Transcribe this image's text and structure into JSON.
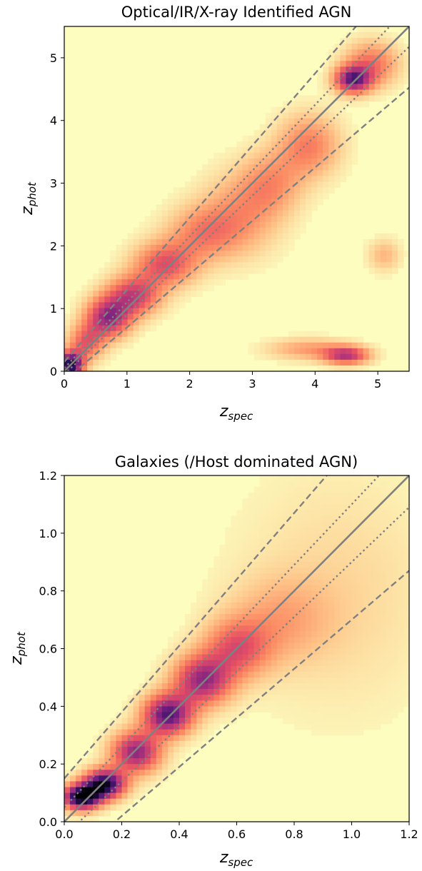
{
  "chart_data": [
    {
      "type": "heatmap",
      "title": "Optical/IR/X-ray Identified AGN",
      "xlabel": {
        "main": "z",
        "sub": "spec"
      },
      "ylabel": {
        "main": "z",
        "sub": "phot"
      },
      "xlim": [
        0,
        5.5
      ],
      "ylim": [
        0,
        5.5
      ],
      "xticks": [
        "0",
        "1",
        "2",
        "3",
        "4",
        "5"
      ],
      "yticks": [
        "0",
        "1",
        "2",
        "3",
        "4",
        "5"
      ],
      "colormap": [
        "#fcfdbf",
        "#fec287",
        "#fb8861",
        "#e75263",
        "#b73779",
        "#721f81",
        "#2c115f",
        "#000004"
      ],
      "reference_lines": [
        {
          "style": "solid",
          "color": "#808080",
          "slope": 1.0,
          "offset": 0.0
        },
        {
          "style": "dotted",
          "color": "#808080",
          "slope": 1.05,
          "offset": 0.05
        },
        {
          "style": "dotted",
          "color": "#808080",
          "slope": 0.95,
          "offset": -0.05
        },
        {
          "style": "dashed",
          "color": "#808080",
          "slope": 1.15,
          "offset": 0.15
        },
        {
          "style": "dashed",
          "color": "#808080",
          "slope": 0.85,
          "offset": -0.15
        }
      ],
      "density": [
        {
          "x": 0.1,
          "y": 0.1,
          "sx": 0.14,
          "sy": 0.14,
          "w": 1.2
        },
        {
          "x": 0.35,
          "y": 0.45,
          "sx": 0.2,
          "sy": 0.2,
          "w": 0.5
        },
        {
          "x": 0.7,
          "y": 0.85,
          "sx": 0.25,
          "sy": 0.22,
          "w": 0.8
        },
        {
          "x": 1.1,
          "y": 1.2,
          "sx": 0.3,
          "sy": 0.22,
          "w": 0.65
        },
        {
          "x": 1.6,
          "y": 1.7,
          "sx": 0.35,
          "sy": 0.25,
          "w": 0.55
        },
        {
          "x": 2.2,
          "y": 2.2,
          "sx": 0.4,
          "sy": 0.3,
          "w": 0.35
        },
        {
          "x": 2.8,
          "y": 2.5,
          "sx": 0.45,
          "sy": 0.45,
          "w": 0.3
        },
        {
          "x": 3.3,
          "y": 3.0,
          "sx": 0.35,
          "sy": 0.35,
          "w": 0.3
        },
        {
          "x": 3.9,
          "y": 3.6,
          "sx": 0.35,
          "sy": 0.35,
          "w": 0.4
        },
        {
          "x": 4.6,
          "y": 4.65,
          "sx": 0.2,
          "sy": 0.15,
          "w": 0.9
        },
        {
          "x": 4.9,
          "y": 4.9,
          "sx": 0.3,
          "sy": 0.25,
          "w": 0.45
        },
        {
          "x": 4.5,
          "y": 0.25,
          "sx": 0.25,
          "sy": 0.1,
          "w": 0.7
        },
        {
          "x": 3.9,
          "y": 0.35,
          "sx": 0.45,
          "sy": 0.12,
          "w": 0.3
        },
        {
          "x": 5.1,
          "y": 1.85,
          "sx": 0.18,
          "sy": 0.18,
          "w": 0.22
        }
      ]
    },
    {
      "type": "heatmap",
      "title": "Galaxies (/Host dominated AGN)",
      "xlabel": {
        "main": "z",
        "sub": "spec"
      },
      "ylabel": {
        "main": "z",
        "sub": "phot"
      },
      "xlim": [
        0,
        1.2
      ],
      "ylim": [
        0,
        1.2
      ],
      "xticks": [
        "0.0",
        "0.2",
        "0.4",
        "0.6",
        "0.8",
        "1.0",
        "1.2"
      ],
      "yticks": [
        "0.0",
        "0.2",
        "0.4",
        "0.6",
        "0.8",
        "1.0",
        "1.2"
      ],
      "colormap": [
        "#fcfdbf",
        "#fec287",
        "#fb8861",
        "#e75263",
        "#b73779",
        "#721f81",
        "#2c115f",
        "#000004"
      ],
      "reference_lines": [
        {
          "style": "solid",
          "color": "#808080",
          "slope": 1.0,
          "offset": 0.0
        },
        {
          "style": "dotted",
          "color": "#808080",
          "slope": 1.05,
          "offset": 0.05
        },
        {
          "style": "dotted",
          "color": "#808080",
          "slope": 0.95,
          "offset": -0.05
        },
        {
          "style": "dashed",
          "color": "#808080",
          "slope": 1.15,
          "offset": 0.15
        },
        {
          "style": "dashed",
          "color": "#808080",
          "slope": 0.85,
          "offset": -0.15
        }
      ],
      "density": [
        {
          "x": 0.06,
          "y": 0.085,
          "sx": 0.045,
          "sy": 0.03,
          "w": 1.3
        },
        {
          "x": 0.14,
          "y": 0.13,
          "sx": 0.05,
          "sy": 0.035,
          "w": 1.2
        },
        {
          "x": 0.25,
          "y": 0.24,
          "sx": 0.06,
          "sy": 0.05,
          "w": 0.85
        },
        {
          "x": 0.36,
          "y": 0.37,
          "sx": 0.06,
          "sy": 0.05,
          "w": 1.0
        },
        {
          "x": 0.48,
          "y": 0.49,
          "sx": 0.07,
          "sy": 0.06,
          "w": 0.8
        },
        {
          "x": 0.6,
          "y": 0.6,
          "sx": 0.08,
          "sy": 0.07,
          "w": 0.5
        },
        {
          "x": 0.75,
          "y": 0.7,
          "sx": 0.12,
          "sy": 0.1,
          "w": 0.22
        },
        {
          "x": 0.95,
          "y": 0.8,
          "sx": 0.25,
          "sy": 0.3,
          "w": 0.12
        }
      ]
    }
  ]
}
